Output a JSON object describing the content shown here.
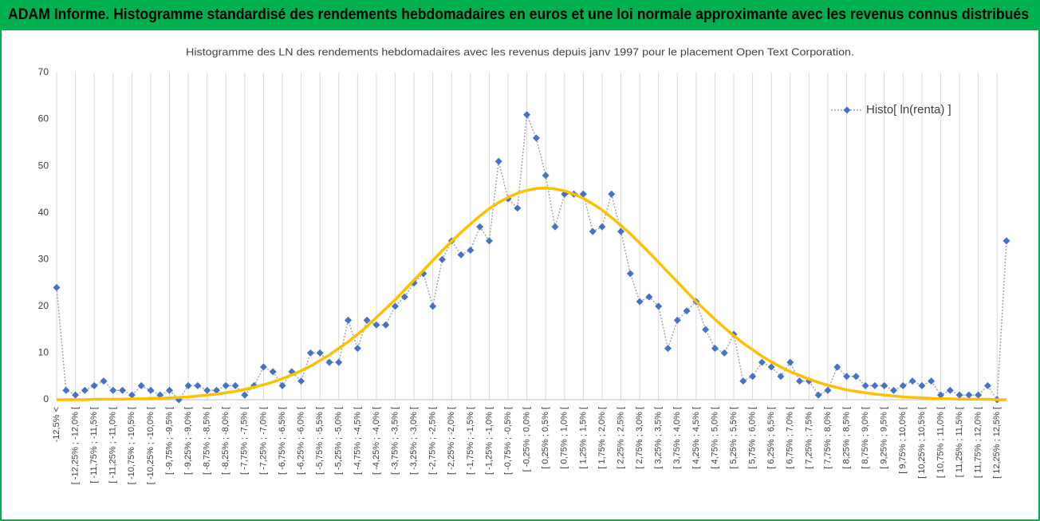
{
  "chart_data": {
    "type": "line",
    "header": "ADAM Informe. Histogramme standardisé des rendements hebdomadaires en euros et une loi normale approximante avec les revenus connus distribués",
    "title": "Histogramme des LN des rendements hebdomadaires avec les revenus depuis janv 1997 pour le placement Open Text Corporation.",
    "categories": [
      "-12,5% <",
      null,
      "[ -12,25% ; -12,0% [",
      null,
      "[ -11,75% ; -11,5% [",
      null,
      "[ -11,25% ; -11,0% [",
      null,
      "[ -10,75% ; -10,5% [",
      null,
      "[ -10,25% ; -10,0% [",
      null,
      "[ -9,75% ; -9,5% [",
      null,
      "[ -9,25% ; -9,0% [",
      null,
      "[ -8,75% ; -8,5% [",
      null,
      "[ -8,25% ; -8,0% [",
      null,
      "[ -7,75% ; -7,5% [",
      null,
      "[ -7,25% ; -7,0% [",
      null,
      "[ -6,75% ; -6,5% [",
      null,
      "[ -6,25% ; -6,0% [",
      null,
      "[ -5,75% ; -5,5% [",
      null,
      "[ -5,25% ; -5,0% [",
      null,
      "[ -4,75% ; -4,5% [",
      null,
      "[ -4,25% ; -4,0% [",
      null,
      "[ -3,75% ; -3,5% [",
      null,
      "[ -3,25% ; -3,0% [",
      null,
      "[ -2,75% ; -2,5% [",
      null,
      "[ -2,25% ; -2,0% [",
      null,
      "[ -1,75% ; -1,5% [",
      null,
      "[ -1,25% ; -1,0% [",
      null,
      "[ -0,75% ; -0,5% [",
      null,
      "[ -0,25% ; 0,0% [",
      null,
      "[ 0,25% ; 0,5% [",
      null,
      "[ 0,75% ; 1,0% [",
      null,
      "[ 1,25% ; 1,5% [",
      null,
      "[ 1,75% ; 2,0% [",
      null,
      "[ 2,25% ; 2,5% [",
      null,
      "[ 2,75% ; 3,0% [",
      null,
      "[ 3,25% ; 3,5% [",
      null,
      "[ 3,75% ; 4,0% [",
      null,
      "[ 4,25% ; 4,5% [",
      null,
      "[ 4,75% ; 5,0% [",
      null,
      "[ 5,25% ; 5,5% [",
      null,
      "[ 5,75% ; 6,0% [",
      null,
      "[ 6,25% ; 6,5% [",
      null,
      "[ 6,75% ; 7,0% [",
      null,
      "[ 7,25% ; 7,5% [",
      null,
      "[ 7,75% ; 8,0% [",
      null,
      "[ 8,25% ; 8,5% [",
      null,
      "[ 8,75% ; 9,0% [",
      null,
      "[ 9,25% ; 9,5% [",
      null,
      "[ 9,75% ; 10,0% [",
      null,
      "[ 10,25% ; 10,5% [",
      null,
      "[ 10,75% ; 11,0% [",
      null,
      "[ 11,25% ; 11,5% [",
      null,
      "[ 11,75% ; 12,0% [",
      null,
      "[ 12,25% ; 12,5% [",
      null
    ],
    "series": [
      {
        "name": "Histo[ ln(renta) ]",
        "color": "#4472c4",
        "values": [
          24,
          2,
          1,
          2,
          3,
          4,
          2,
          2,
          1,
          3,
          2,
          1,
          2,
          0,
          3,
          3,
          2,
          2,
          3,
          3,
          1,
          3,
          7,
          6,
          3,
          6,
          4,
          10,
          10,
          8,
          8,
          17,
          11,
          17,
          16,
          16,
          20,
          22,
          25,
          27,
          20,
          30,
          34,
          31,
          32,
          37,
          34,
          51,
          43,
          41,
          61,
          56,
          48,
          37,
          44,
          44,
          44,
          36,
          37,
          44,
          36,
          27,
          21,
          22,
          20,
          11,
          17,
          19,
          21,
          15,
          11,
          10,
          14,
          4,
          5,
          8,
          7,
          5,
          8,
          4,
          4,
          1,
          2,
          7,
          5,
          5,
          3,
          3,
          3,
          2,
          3,
          4,
          3,
          4,
          1,
          2,
          1,
          1,
          1,
          3,
          0,
          34
        ]
      },
      {
        "color": "#ffc000",
        "values": [
          0.0,
          0.0,
          0.0,
          0.0,
          0.1,
          0.1,
          0.1,
          0.1,
          0.2,
          0.2,
          0.3,
          0.3,
          0.4,
          0.5,
          0.6,
          0.8,
          1.0,
          1.2,
          1.5,
          1.8,
          2.2,
          2.7,
          3.2,
          3.8,
          4.5,
          5.3,
          6.2,
          7.2,
          8.4,
          9.6,
          11.0,
          12.4,
          14.0,
          15.7,
          17.6,
          19.5,
          21.4,
          23.5,
          25.6,
          27.7,
          29.8,
          31.9,
          33.9,
          35.8,
          37.6,
          39.3,
          40.9,
          42.2,
          43.3,
          44.2,
          44.8,
          45.2,
          45.3,
          45.1,
          44.7,
          44.0,
          43.1,
          41.9,
          40.6,
          39.0,
          37.3,
          35.5,
          33.5,
          31.5,
          29.4,
          27.3,
          25.2,
          23.1,
          21.0,
          19.1,
          17.2,
          15.4,
          13.7,
          12.1,
          10.7,
          9.3,
          8.1,
          7.0,
          6.0,
          5.2,
          4.4,
          3.7,
          3.1,
          2.6,
          2.1,
          1.8,
          1.5,
          1.2,
          1.0,
          0.8,
          0.6,
          0.5,
          0.4,
          0.3,
          0.2,
          0.2,
          0.1,
          0.1,
          0.1,
          0.1,
          0.0,
          0.0
        ]
      }
    ],
    "ylim": [
      0,
      70
    ],
    "yticks": [
      0,
      10,
      20,
      30,
      40,
      50,
      60,
      70
    ],
    "grid": "x",
    "legend": "top-right"
  }
}
